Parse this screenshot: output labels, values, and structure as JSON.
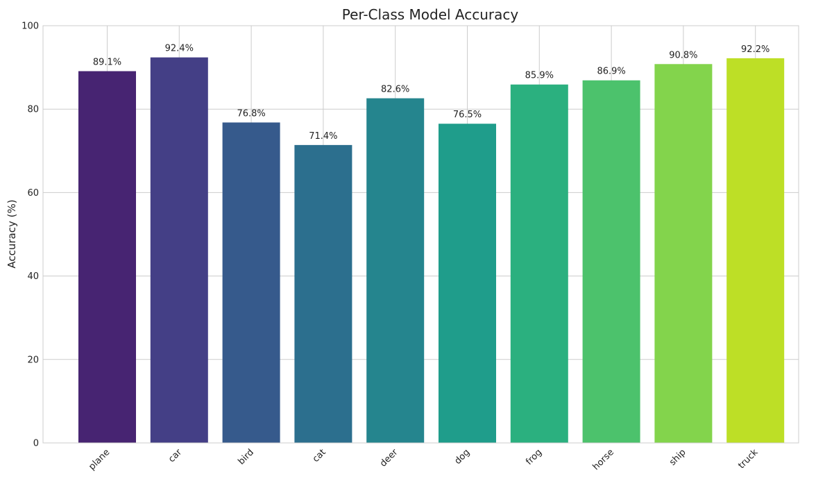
{
  "chart_data": {
    "type": "bar",
    "title": "Per-Class Model Accuracy",
    "xlabel": "",
    "ylabel": "Accuracy (%)",
    "ylim": [
      0,
      100
    ],
    "yticks": [
      0,
      20,
      40,
      60,
      80,
      100
    ],
    "grid": true,
    "categories": [
      "plane",
      "car",
      "bird",
      "cat",
      "deer",
      "dog",
      "frog",
      "horse",
      "ship",
      "truck"
    ],
    "values": [
      89.1,
      92.4,
      76.8,
      71.4,
      82.6,
      76.5,
      85.9,
      86.9,
      90.8,
      92.2
    ],
    "data_labels": [
      "89.1%",
      "92.4%",
      "76.8%",
      "71.4%",
      "82.6%",
      "76.5%",
      "85.9%",
      "86.9%",
      "90.8%",
      "92.2%"
    ],
    "colors": [
      "#472472",
      "#443F86",
      "#365A8C",
      "#2C6F8E",
      "#25858E",
      "#1F9D8B",
      "#2BB07F",
      "#4CC26C",
      "#83D44C",
      "#BDDF26"
    ]
  }
}
